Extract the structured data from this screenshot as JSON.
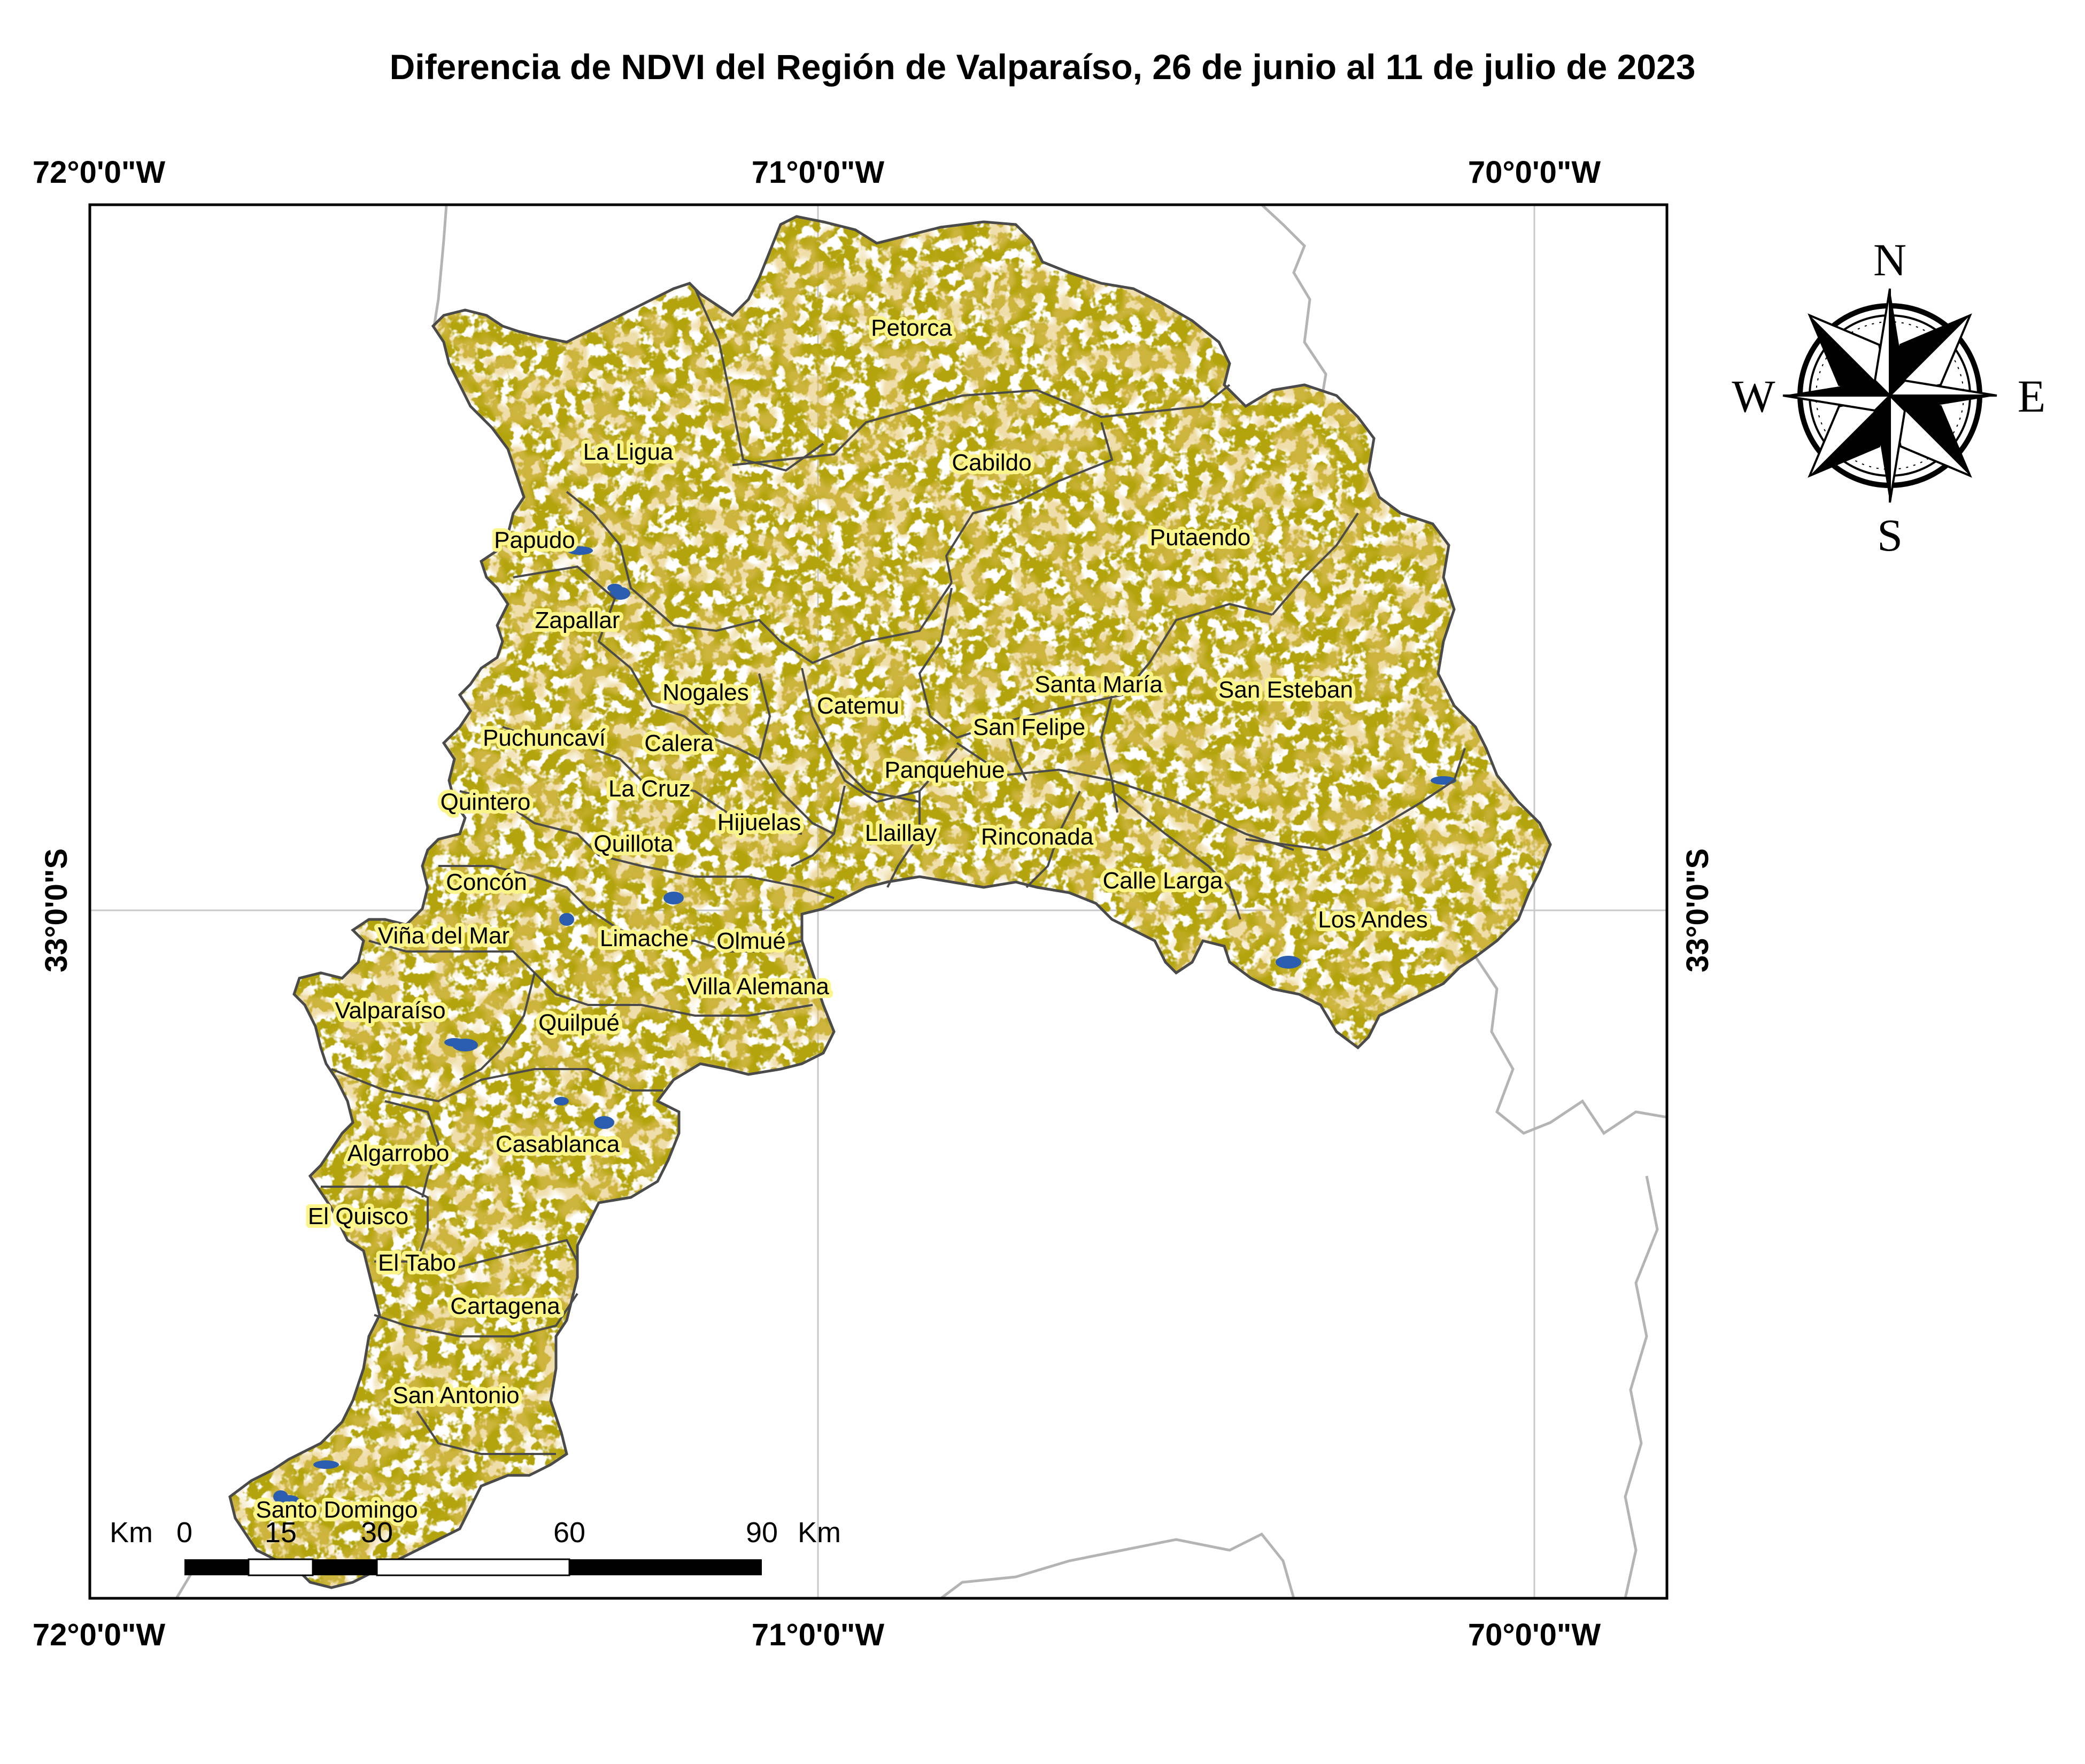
{
  "title": "Diferencia de NDVI del Región de Valparaíso, 26 de junio al 11 de julio de 2023",
  "graticule": {
    "lon_labels": [
      "72°0'0\"W",
      "71°0'0\"W",
      "70°0'0\"W"
    ],
    "lat_label": "33°0'0\"S"
  },
  "compass": {
    "n": "N",
    "s": "S",
    "e": "E",
    "w": "W"
  },
  "scalebar": {
    "unit_left": "Km",
    "unit_right": "Km",
    "ticks": [
      "0",
      "15",
      "30",
      "60",
      "90"
    ]
  },
  "communes": [
    {
      "id": "petorca",
      "name": "Petorca"
    },
    {
      "id": "la-ligua",
      "name": "La Ligua"
    },
    {
      "id": "cabildo",
      "name": "Cabildo"
    },
    {
      "id": "papudo",
      "name": "Papudo"
    },
    {
      "id": "putaendo",
      "name": "Putaendo"
    },
    {
      "id": "zapallar",
      "name": "Zapallar"
    },
    {
      "id": "nogales",
      "name": "Nogales"
    },
    {
      "id": "catemu",
      "name": "Catemu"
    },
    {
      "id": "santa-maria",
      "name": "Santa María"
    },
    {
      "id": "san-esteban",
      "name": "San Esteban"
    },
    {
      "id": "san-felipe",
      "name": "San Felipe"
    },
    {
      "id": "puchuncavi",
      "name": "Puchuncaví"
    },
    {
      "id": "calera",
      "name": "Calera"
    },
    {
      "id": "panquehue",
      "name": "Panquehue"
    },
    {
      "id": "la-cruz",
      "name": "La Cruz"
    },
    {
      "id": "quintero",
      "name": "Quintero"
    },
    {
      "id": "hijuelas",
      "name": "Hijuelas"
    },
    {
      "id": "llaillay",
      "name": "Llaillay"
    },
    {
      "id": "rinconada",
      "name": "Rinconada"
    },
    {
      "id": "quillota",
      "name": "Quillota"
    },
    {
      "id": "calle-larga",
      "name": "Calle Larga"
    },
    {
      "id": "concon",
      "name": "Concón"
    },
    {
      "id": "los-andes",
      "name": "Los Andes"
    },
    {
      "id": "vina-del-mar",
      "name": "Viña del Mar"
    },
    {
      "id": "limache",
      "name": "Limache"
    },
    {
      "id": "olmue",
      "name": "Olmué"
    },
    {
      "id": "villa-alemana",
      "name": "Villa Alemana"
    },
    {
      "id": "valparaiso",
      "name": "Valparaíso"
    },
    {
      "id": "quilpue",
      "name": "Quilpué"
    },
    {
      "id": "algarrobo",
      "name": "Algarrobo"
    },
    {
      "id": "casablanca",
      "name": "Casablanca"
    },
    {
      "id": "el-quisco",
      "name": "El Quisco"
    },
    {
      "id": "el-tabo",
      "name": "El Tabo"
    },
    {
      "id": "cartagena",
      "name": "Cartagena"
    },
    {
      "id": "san-antonio",
      "name": "San Antonio"
    },
    {
      "id": "santo-domingo",
      "name": "Santo Domingo"
    }
  ],
  "colors": {
    "ndvi_fill": "#b3a40e",
    "ndvi_dark": "#9c8a10",
    "ndvi_orange": "#c38a22",
    "ndvi_green": "#a9c23a",
    "water": "#2a5db0",
    "label_halo": "#fbf58a",
    "boundary": "#4a4a4a",
    "neighbor_boundary": "#b4b4b4",
    "graticule": "#c8c8c8"
  }
}
